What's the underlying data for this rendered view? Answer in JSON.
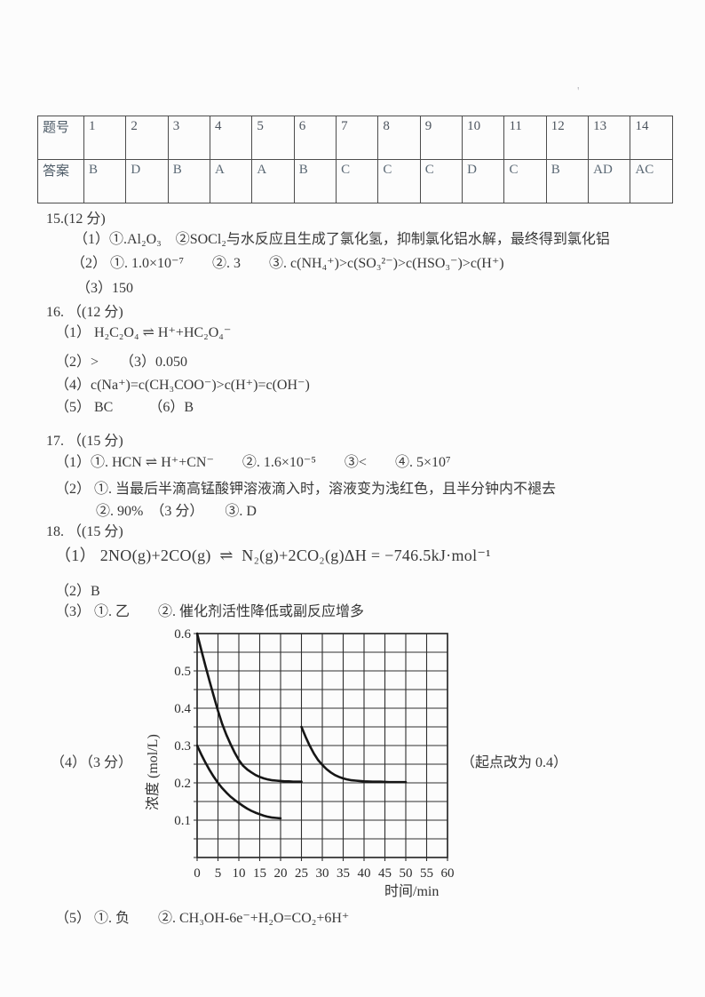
{
  "stray_mark": "'",
  "answer_table": {
    "header_label": "题号",
    "answer_label": "答案",
    "numbers": [
      "1",
      "2",
      "3",
      "4",
      "5",
      "6",
      "7",
      "8",
      "9",
      "10",
      "11",
      "12",
      "13",
      "14"
    ],
    "answers": [
      "B",
      "D",
      "B",
      "A",
      "A",
      "B",
      "C",
      "C",
      "C",
      "D",
      "C",
      "B",
      "AD",
      "AC"
    ]
  },
  "sections": {
    "s15": {
      "title": "15.(12 分)",
      "l1": "（1）①.Al₂O₃　②SOCl₂与水反应且生成了氯化氢，抑制氯化铝水解，最终得到氯化铝",
      "l2": "（2） ①. 1.0×10⁻⁷　　②. 3　　③. c(NH₄⁺)>c(SO₃²⁻)>c(HSO₃⁻)>c(H⁺)",
      "l3": "（3）150"
    },
    "s16": {
      "title": "16. （(12 分)",
      "l1": "（1） H₂C₂O₄ ⇌ H⁺+HC₂O₄⁻",
      "l2": "（2）>　　（3）0.050",
      "l3": "（4）c(Na⁺)=c(CH₃COO⁻)>c(H⁺)=c(OH⁻)",
      "l4": "（5） BC　　　（6）B"
    },
    "s17": {
      "title": "17. （(15 分)",
      "l1": "（1）①. HCN ⇌ H⁺+CN⁻　　②. 1.6×10⁻⁵　　③<　　④. 5×10⁷",
      "l2": "（2） ①. 当最后半滴高锰酸钾溶液滴入时，溶液变为浅红色，且半分钟内不褪去",
      "l3": "②. 90%　（3 分）　　③. D"
    },
    "s18": {
      "title": "18. （(15 分)",
      "l1": "（1） 2NO(g)+2CO(g)  ⇌  N₂(g)+2CO₂(g)ΔH = −746.5kJ·mol⁻¹",
      "l2": "（2）B",
      "l3": "（3） ①. 乙　　②. 催化剂活性降低或副反应增多",
      "l4_label": "（4）（3 分）",
      "l4_note": "（起点改为 0.4）",
      "l5": "（5） ①. 负　　②. CH₃OH-6e⁻+H₂O=CO₂+6H⁺"
    }
  },
  "chart_data": {
    "type": "line",
    "title": "",
    "xlabel": "时间/min",
    "ylabel": "浓度 (mol/L)",
    "xlim": [
      0,
      60
    ],
    "ylim": [
      0,
      0.6
    ],
    "xticks": [
      0,
      5,
      10,
      15,
      20,
      25,
      30,
      35,
      40,
      45,
      50,
      55,
      60
    ],
    "ytick_labels": [
      "0.1",
      "0.2",
      "0.3",
      "0.4",
      "0.5",
      "0.6"
    ],
    "grid": {
      "on": true,
      "x_step": 5,
      "y_step": 0.05
    },
    "legend": "none",
    "colors": {
      "grid": "#2e2e2e",
      "line": "#161616"
    },
    "series": [
      {
        "name": "decay-from-0.6",
        "points": [
          [
            0,
            0.6
          ],
          [
            1,
            0.556
          ],
          [
            2,
            0.513
          ],
          [
            3,
            0.472
          ],
          [
            4,
            0.432
          ],
          [
            5,
            0.393
          ],
          [
            6,
            0.358
          ],
          [
            7,
            0.329
          ],
          [
            8,
            0.304
          ],
          [
            9,
            0.281
          ],
          [
            10,
            0.261
          ],
          [
            11,
            0.246
          ],
          [
            12,
            0.236
          ],
          [
            13,
            0.228
          ],
          [
            14,
            0.221
          ],
          [
            15,
            0.216
          ],
          [
            16,
            0.212
          ],
          [
            17,
            0.209
          ],
          [
            18,
            0.207
          ],
          [
            19,
            0.206
          ],
          [
            20,
            0.205
          ],
          [
            21,
            0.204
          ],
          [
            22,
            0.204
          ],
          [
            23,
            0.203
          ],
          [
            24,
            0.203
          ],
          [
            25,
            0.203
          ]
        ]
      },
      {
        "name": "decay-from-0.3",
        "points": [
          [
            0,
            0.3
          ],
          [
            1,
            0.276
          ],
          [
            2,
            0.254
          ],
          [
            3,
            0.234
          ],
          [
            4,
            0.216
          ],
          [
            5,
            0.2
          ],
          [
            6,
            0.186
          ],
          [
            7,
            0.174
          ],
          [
            8,
            0.163
          ],
          [
            9,
            0.154
          ],
          [
            10,
            0.146
          ],
          [
            11,
            0.138
          ],
          [
            12,
            0.131
          ],
          [
            13,
            0.125
          ],
          [
            14,
            0.12
          ],
          [
            15,
            0.116
          ],
          [
            16,
            0.112
          ],
          [
            17,
            0.109
          ],
          [
            18,
            0.107
          ],
          [
            19,
            0.106
          ],
          [
            20,
            0.105
          ]
        ]
      },
      {
        "name": "decay-restart-at-25-from-0.35",
        "points": [
          [
            25,
            0.35
          ],
          [
            26,
            0.323
          ],
          [
            27,
            0.299
          ],
          [
            28,
            0.278
          ],
          [
            29,
            0.261
          ],
          [
            30,
            0.248
          ],
          [
            31,
            0.237
          ],
          [
            32,
            0.228
          ],
          [
            33,
            0.221
          ],
          [
            34,
            0.216
          ],
          [
            35,
            0.212
          ],
          [
            36,
            0.209
          ],
          [
            37,
            0.207
          ],
          [
            38,
            0.206
          ],
          [
            39,
            0.205
          ],
          [
            40,
            0.204
          ],
          [
            42,
            0.203
          ],
          [
            44,
            0.203
          ],
          [
            46,
            0.202
          ],
          [
            48,
            0.202
          ],
          [
            50,
            0.202
          ]
        ]
      }
    ]
  }
}
